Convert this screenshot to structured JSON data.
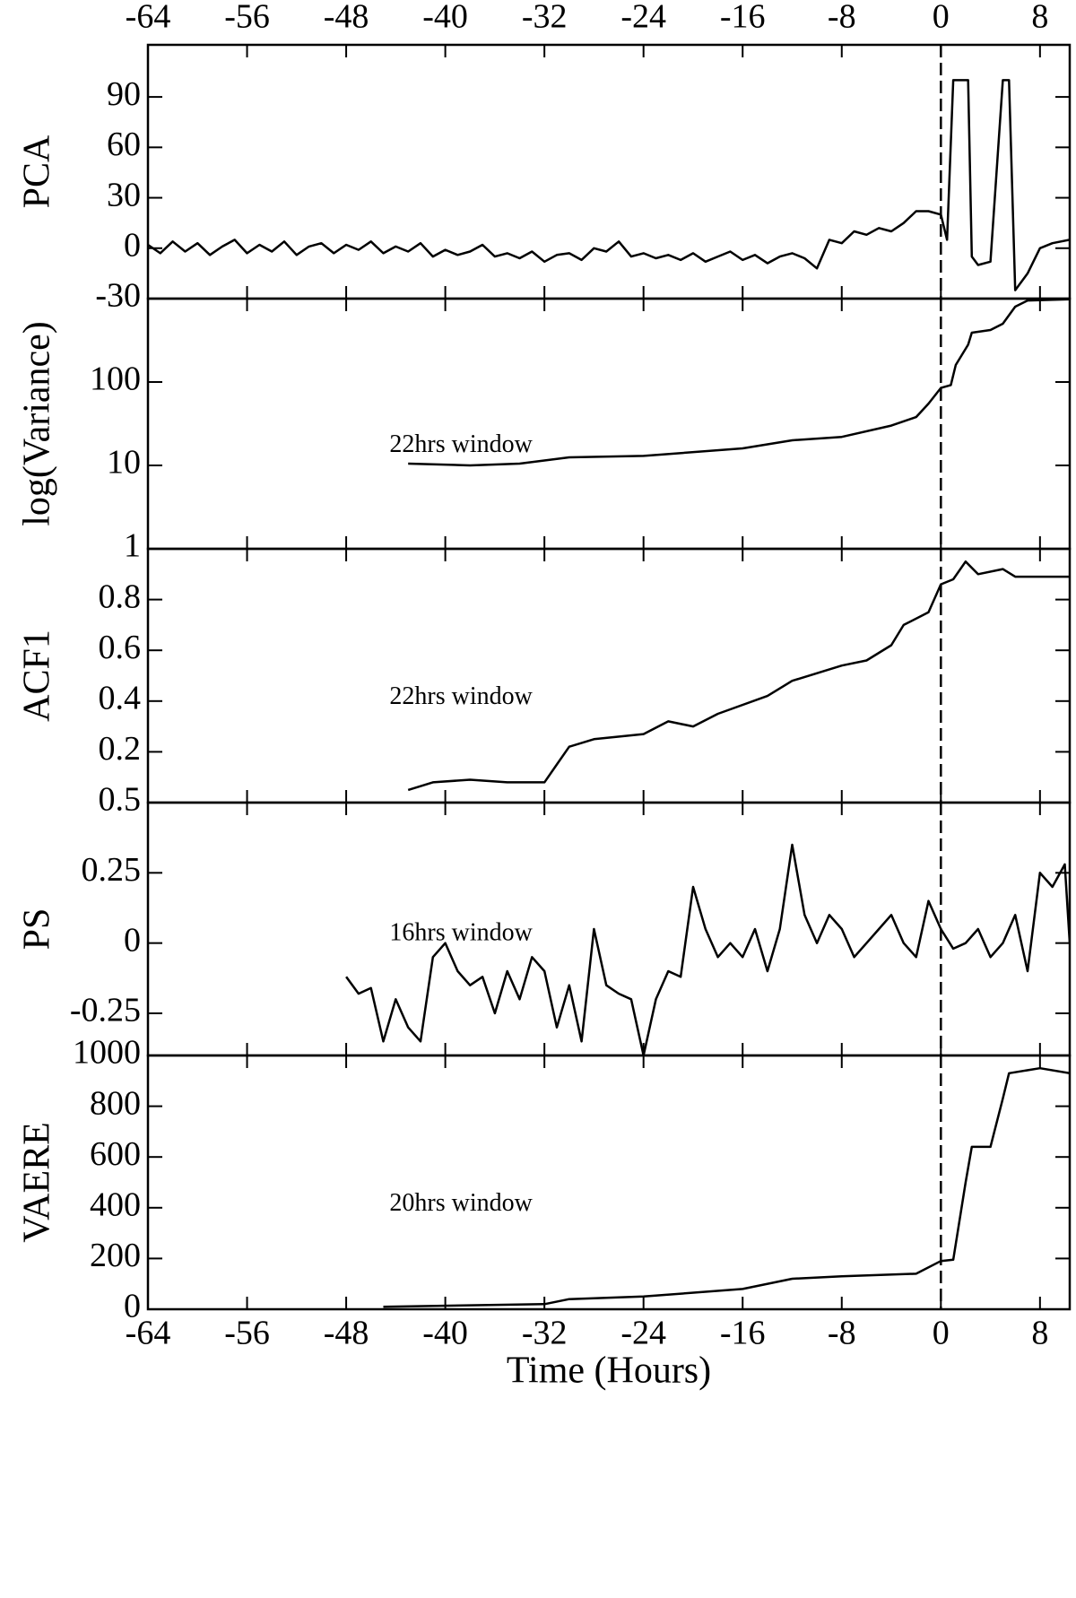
{
  "chart_data": [
    {
      "type": "line",
      "ylabel": "PCA",
      "color": "#000000",
      "xlim": [
        -64,
        10.4
      ],
      "xticks": [
        -64,
        -56,
        -48,
        -40,
        -32,
        -24,
        -16,
        -8,
        0,
        8
      ],
      "ylim": [
        -30,
        121
      ],
      "yticks": [
        -30,
        0,
        30,
        60,
        90
      ],
      "log": false,
      "vline": 0,
      "x": [
        -64,
        -63,
        -62,
        -61,
        -60,
        -59,
        -58,
        -57,
        -56,
        -55,
        -54,
        -53,
        -52,
        -51,
        -50,
        -49,
        -48,
        -47,
        -46,
        -45,
        -44,
        -43,
        -42,
        -41,
        -40,
        -39,
        -38,
        -37,
        -36,
        -35,
        -34,
        -33,
        -32,
        -31,
        -30,
        -29,
        -28,
        -27,
        -26,
        -25,
        -24,
        -23,
        -22,
        -21,
        -20,
        -19,
        -18,
        -17,
        -16,
        -15,
        -14,
        -13,
        -12,
        -11,
        -10,
        -9,
        -8,
        -7,
        -6,
        -5,
        -4,
        -3,
        -2,
        -1,
        0,
        0.5,
        1,
        1.2,
        2.2,
        2.5,
        3,
        4,
        5,
        5.5,
        6,
        7,
        8,
        9,
        10.4
      ],
      "values": [
        2,
        -3,
        4,
        -2,
        3,
        -4,
        1,
        5,
        -3,
        2,
        -2,
        4,
        -4,
        1,
        3,
        -3,
        2,
        -1,
        4,
        -3,
        1,
        -2,
        3,
        -5,
        -1,
        -4,
        -2,
        2,
        -5,
        -3,
        -6,
        -2,
        -8,
        -4,
        -3,
        -7,
        0,
        -2,
        4,
        -5,
        -3,
        -6,
        -4,
        -7,
        -3,
        -8,
        -5,
        -2,
        -7,
        -4,
        -9,
        -5,
        -3,
        -6,
        -12,
        5,
        3,
        10,
        8,
        12,
        10,
        15,
        22,
        22,
        20,
        5,
        100,
        100,
        100,
        -5,
        -10,
        -8,
        100,
        100,
        -25,
        -15,
        0,
        3,
        5
      ]
    },
    {
      "type": "line",
      "ylabel": "log(Variance)",
      "annotation": "22hrs window",
      "color": "#000000",
      "xlim": [
        -64,
        10.4
      ],
      "xticks": [
        -64,
        -56,
        -48,
        -40,
        -32,
        -24,
        -16,
        -8,
        0,
        8
      ],
      "ylim": [
        1,
        1000
      ],
      "yticks": [
        1,
        10,
        100
      ],
      "log": true,
      "vline": 0,
      "x": [
        -43,
        -38,
        -34,
        -30,
        -24,
        -16,
        -12,
        -8,
        -4,
        -2,
        -1,
        0,
        0.8,
        1.2,
        2.2,
        2.5,
        4,
        5,
        6,
        7,
        10.4
      ],
      "values": [
        10.5,
        10,
        10.5,
        12.5,
        13,
        16,
        20,
        22,
        30,
        38,
        55,
        85,
        92,
        160,
        280,
        390,
        420,
        500,
        800,
        950,
        980
      ]
    },
    {
      "type": "line",
      "ylabel": "ACF1",
      "annotation": "22hrs window",
      "color": "#000000",
      "xlim": [
        -64,
        10.4
      ],
      "xticks": [
        -64,
        -56,
        -48,
        -40,
        -32,
        -24,
        -16,
        -8,
        0,
        8
      ],
      "ylim": [
        0,
        1
      ],
      "yticks": [
        0.2,
        0.4,
        0.6,
        0.8
      ],
      "log": false,
      "vline": 0,
      "x": [
        -43,
        -41,
        -38,
        -35,
        -32,
        -31,
        -30,
        -28,
        -24,
        -22,
        -20,
        -18,
        -14,
        -12,
        -8,
        -6,
        -4,
        -3,
        -1,
        0,
        1,
        2,
        3,
        5,
        6,
        10.4
      ],
      "values": [
        0.05,
        0.08,
        0.09,
        0.08,
        0.08,
        0.15,
        0.22,
        0.25,
        0.27,
        0.32,
        0.3,
        0.35,
        0.42,
        0.48,
        0.54,
        0.56,
        0.62,
        0.7,
        0.75,
        0.86,
        0.88,
        0.95,
        0.9,
        0.92,
        0.89,
        0.89
      ]
    },
    {
      "type": "line",
      "ylabel": "PS",
      "annotation": "16hrs window",
      "color": "#000000",
      "xlim": [
        -64,
        10.4
      ],
      "xticks": [
        -64,
        -56,
        -48,
        -40,
        -32,
        -24,
        -16,
        -8,
        0,
        8
      ],
      "ylim": [
        -0.4,
        0.5
      ],
      "yticks": [
        -0.25,
        0,
        0.25,
        0.5
      ],
      "log": false,
      "vline": 0,
      "x": [
        -48,
        -47,
        -46,
        -45,
        -44,
        -43,
        -42,
        -41,
        -40,
        -39,
        -38,
        -37,
        -36,
        -35,
        -34,
        -33,
        -32,
        -31,
        -30,
        -29,
        -28,
        -27,
        -26,
        -25,
        -24,
        -23,
        -22,
        -21,
        -20,
        -19,
        -18,
        -17,
        -16,
        -15,
        -14,
        -13,
        -12,
        -11,
        -10,
        -9,
        -8,
        -7,
        -6,
        -5,
        -4,
        -3,
        -2,
        -1,
        0,
        1,
        2,
        3,
        4,
        5,
        6,
        7,
        8,
        9,
        10,
        10.4
      ],
      "values": [
        -0.12,
        -0.18,
        -0.16,
        -0.35,
        -0.2,
        -0.3,
        -0.35,
        -0.05,
        0,
        -0.1,
        -0.15,
        -0.12,
        -0.25,
        -0.1,
        -0.2,
        -0.05,
        -0.1,
        -0.3,
        -0.15,
        -0.35,
        0.05,
        -0.15,
        -0.18,
        -0.2,
        -0.4,
        -0.2,
        -0.1,
        -0.12,
        0.2,
        0.05,
        -0.05,
        0,
        -0.05,
        0.05,
        -0.1,
        0.05,
        0.35,
        0.1,
        0,
        0.1,
        0.05,
        -0.05,
        0,
        0.05,
        0.1,
        0,
        -0.05,
        0.15,
        0.05,
        -0.02,
        0,
        0.05,
        -0.05,
        0,
        0.1,
        -0.1,
        0.25,
        0.2,
        0.28,
        0
      ]
    },
    {
      "type": "line",
      "ylabel": "VAERE",
      "annotation": "20hrs window",
      "xlabel": "Time (Hours)",
      "color": "#000000",
      "xlim": [
        -64,
        10.4
      ],
      "xticks": [
        -64,
        -56,
        -48,
        -40,
        -32,
        -24,
        -16,
        -8,
        0,
        8
      ],
      "ylim": [
        0,
        1000
      ],
      "yticks": [
        0,
        200,
        400,
        600,
        800,
        1000
      ],
      "log": false,
      "vline": 0,
      "x": [
        -45,
        -32,
        -30,
        -24,
        -16,
        -12,
        -8,
        -2,
        0,
        1,
        2,
        2.5,
        4,
        5,
        5.5,
        8,
        10.4
      ],
      "values": [
        10,
        20,
        40,
        50,
        80,
        120,
        130,
        140,
        190,
        195,
        500,
        640,
        640,
        830,
        930,
        950,
        930
      ]
    }
  ]
}
